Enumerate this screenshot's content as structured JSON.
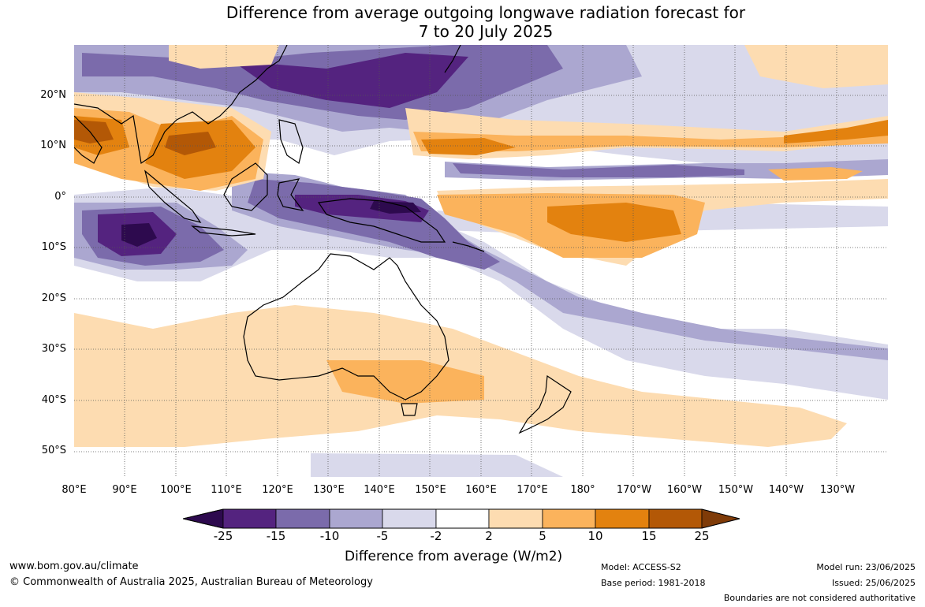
{
  "title": {
    "line1": "Difference from average outgoing longwave radiation forecast for",
    "line2": "7 to 20 July 2025"
  },
  "map": {
    "lat_labels": [
      "20°N",
      "10°N",
      "0°",
      "10°S",
      "20°S",
      "30°S",
      "40°S",
      "50°S"
    ],
    "lon_labels": [
      "80°E",
      "90°E",
      "100°E",
      "110°E",
      "120°E",
      "130°E",
      "140°E",
      "150°E",
      "160°E",
      "170°E",
      "180°",
      "170°W",
      "160°W",
      "150°W",
      "140°W",
      "130°W"
    ],
    "extent": {
      "lon_min": 80,
      "lon_max": 240,
      "lat_max": 30,
      "lat_min": -55
    }
  },
  "colorbar": {
    "ticks": [
      "-25",
      "-15",
      "-10",
      "-5",
      "-2",
      "2",
      "5",
      "10",
      "15",
      "25"
    ],
    "colors": [
      "#2d0a4e",
      "#54237f",
      "#7b6bab",
      "#aba7d0",
      "#d9d9eb",
      "#ffffff",
      "#fddcb1",
      "#fbb35c",
      "#e3820f",
      "#b35806",
      "#7f3b08"
    ],
    "label": "Difference from average (W/m2)"
  },
  "footer": {
    "url": "www.bom.gov.au/climate",
    "copyright": "© Commonwealth of Australia 2025, Australian Bureau of Meteorology",
    "model": "Model: ACCESS-S2",
    "base_period": "Base period: 1981-2018",
    "model_run": "Model run: 23/06/2025",
    "issued": "Issued: 25/06/2025",
    "disclaimer": "Boundaries are not considered authoritative"
  }
}
